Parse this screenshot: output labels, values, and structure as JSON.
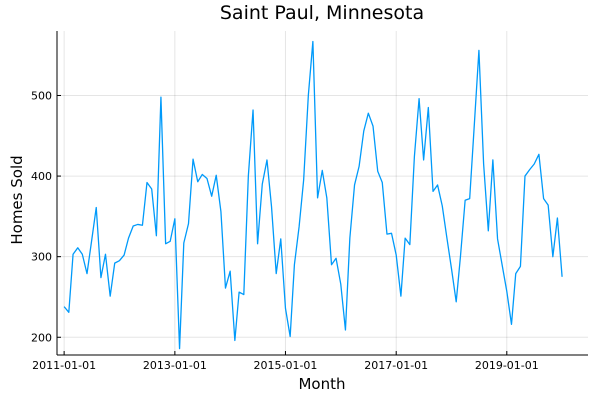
{
  "chart_data": {
    "type": "line",
    "title": "Saint Paul, Minnesota",
    "xlabel": "Month",
    "ylabel": "Homes Sold",
    "xlim": [
      "2010-11-15",
      "2020-06-20"
    ],
    "ylim": [
      178,
      580
    ],
    "xticks": [
      {
        "date": "2011-01-01",
        "label": "2011-01-01"
      },
      {
        "date": "2013-01-01",
        "label": "2013-01-01"
      },
      {
        "date": "2015-01-01",
        "label": "2015-01-01"
      },
      {
        "date": "2017-01-01",
        "label": "2017-01-01"
      },
      {
        "date": "2019-01-01",
        "label": "2019-01-01"
      }
    ],
    "yticks": [
      200,
      300,
      400,
      500
    ],
    "grid": true,
    "legend": "none",
    "colors": {
      "series": "#009AFA"
    },
    "series": [
      {
        "start_month": "2011-01-01",
        "frequency": "monthly",
        "values": [
          238,
          231,
          303,
          311,
          303,
          279,
          319,
          361,
          274,
          303,
          251,
          292,
          295,
          302,
          323,
          338,
          340,
          339,
          392,
          384,
          326,
          498,
          316,
          319,
          347,
          186,
          317,
          341,
          421,
          393,
          402,
          397,
          375,
          401,
          356,
          261,
          282,
          196,
          256,
          253,
          400,
          482,
          316,
          390,
          420,
          362,
          279,
          322,
          236,
          201,
          290,
          337,
          395,
          500,
          567,
          373,
          407,
          373,
          290,
          298,
          266,
          209,
          323,
          389,
          412,
          456,
          478,
          462,
          406,
          392,
          328,
          329,
          302,
          251,
          323,
          315,
          424,
          496,
          420,
          485,
          381,
          389,
          363,
          324,
          285,
          244,
          300,
          370,
          372,
          465,
          556,
          415,
          332,
          420,
          322,
          290,
          257,
          216,
          279,
          288,
          400,
          408,
          415,
          427,
          372,
          364,
          300,
          348,
          275
        ]
      }
    ]
  }
}
